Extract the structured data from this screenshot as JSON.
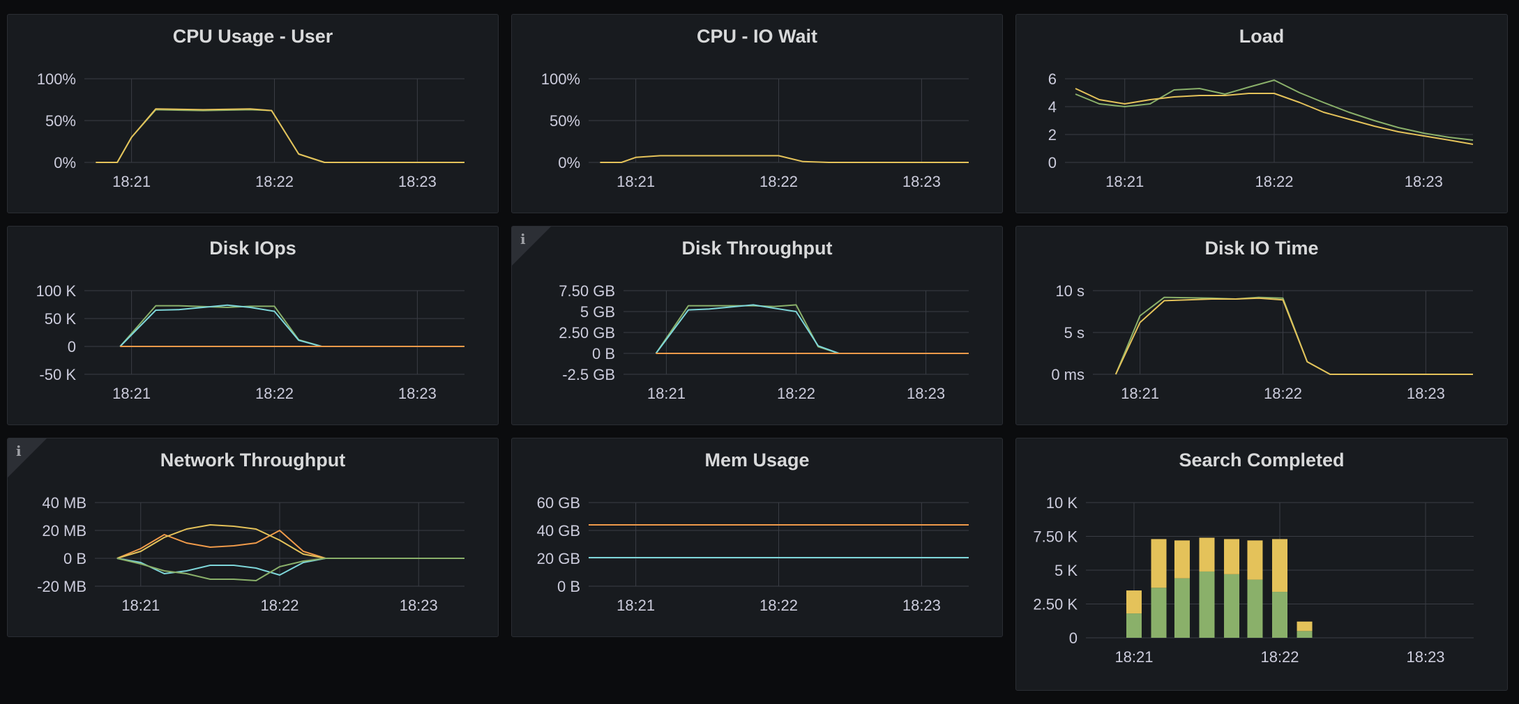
{
  "colors": {
    "green": "#8ab06a",
    "yellow": "#e4c25a",
    "orange": "#ef9a4a",
    "cyan": "#7ed6d9",
    "grid": "#3a3d44"
  },
  "info_icon": "info-icon",
  "x_ticks": [
    "18:21",
    "18:22",
    "18:23"
  ],
  "chart_data": [
    {
      "id": "cpu_user",
      "type": "line",
      "title": "CPU Usage - User",
      "ylim": [
        0,
        100
      ],
      "y_ticks": [
        {
          "v": 0,
          "label": "0%"
        },
        {
          "v": 50,
          "label": "50%"
        },
        {
          "v": 100,
          "label": "100%"
        }
      ],
      "series": [
        {
          "color": "green",
          "points": [
            [
              20.75,
              0
            ],
            [
              20.9,
              0
            ],
            [
              21.0,
              30
            ],
            [
              21.17,
              63
            ],
            [
              21.5,
              62
            ],
            [
              21.83,
              63
            ],
            [
              21.98,
              62
            ],
            [
              22.17,
              10
            ],
            [
              22.35,
              0
            ],
            [
              22.8,
              0
            ],
            [
              23.33,
              0
            ]
          ]
        },
        {
          "color": "yellow",
          "points": [
            [
              20.75,
              0
            ],
            [
              20.9,
              0
            ],
            [
              21.0,
              30
            ],
            [
              21.17,
              64
            ],
            [
              21.5,
              63
            ],
            [
              21.83,
              64
            ],
            [
              21.98,
              62
            ],
            [
              22.17,
              10
            ],
            [
              22.35,
              0
            ],
            [
              22.8,
              0
            ],
            [
              23.33,
              0
            ]
          ]
        }
      ]
    },
    {
      "id": "cpu_iowait",
      "type": "line",
      "title": "CPU - IO Wait",
      "ylim": [
        0,
        100
      ],
      "y_ticks": [
        {
          "v": 0,
          "label": "0%"
        },
        {
          "v": 50,
          "label": "50%"
        },
        {
          "v": 100,
          "label": "100%"
        }
      ],
      "series": [
        {
          "color": "yellow",
          "points": [
            [
              20.75,
              0
            ],
            [
              20.9,
              0
            ],
            [
              21.0,
              6
            ],
            [
              21.17,
              8
            ],
            [
              21.5,
              8
            ],
            [
              21.83,
              8
            ],
            [
              22.0,
              8
            ],
            [
              22.17,
              1
            ],
            [
              22.35,
              0
            ],
            [
              22.8,
              0
            ],
            [
              23.33,
              0
            ]
          ]
        }
      ]
    },
    {
      "id": "load",
      "type": "line",
      "title": "Load",
      "ylim": [
        0,
        6
      ],
      "y_ticks": [
        {
          "v": 0,
          "label": "0"
        },
        {
          "v": 2,
          "label": "2"
        },
        {
          "v": 4,
          "label": "4"
        },
        {
          "v": 6,
          "label": "6"
        }
      ],
      "series": [
        {
          "color": "green",
          "points": [
            [
              20.67,
              4.9
            ],
            [
              20.83,
              4.2
            ],
            [
              21.0,
              4.0
            ],
            [
              21.17,
              4.2
            ],
            [
              21.33,
              5.2
            ],
            [
              21.5,
              5.3
            ],
            [
              21.67,
              4.9
            ],
            [
              21.83,
              5.4
            ],
            [
              22.0,
              5.9
            ],
            [
              22.17,
              5.0
            ],
            [
              22.33,
              4.3
            ],
            [
              22.5,
              3.6
            ],
            [
              22.67,
              3.0
            ],
            [
              22.83,
              2.5
            ],
            [
              23.0,
              2.1
            ],
            [
              23.17,
              1.8
            ],
            [
              23.33,
              1.6
            ]
          ]
        },
        {
          "color": "yellow",
          "points": [
            [
              20.67,
              5.3
            ],
            [
              20.83,
              4.5
            ],
            [
              21.0,
              4.2
            ],
            [
              21.17,
              4.5
            ],
            [
              21.33,
              4.7
            ],
            [
              21.5,
              4.8
            ],
            [
              21.67,
              4.8
            ],
            [
              21.83,
              4.95
            ],
            [
              22.0,
              4.95
            ],
            [
              22.17,
              4.3
            ],
            [
              22.33,
              3.6
            ],
            [
              22.5,
              3.1
            ],
            [
              22.67,
              2.6
            ],
            [
              22.83,
              2.2
            ],
            [
              23.0,
              1.9
            ],
            [
              23.17,
              1.6
            ],
            [
              23.33,
              1.3
            ]
          ]
        }
      ]
    },
    {
      "id": "disk_iops",
      "type": "line",
      "title": "Disk IOps",
      "ylim": [
        -50000,
        100000
      ],
      "y_ticks": [
        {
          "v": -50000,
          "label": "-50 K"
        },
        {
          "v": 0,
          "label": "0"
        },
        {
          "v": 50000,
          "label": "50 K"
        },
        {
          "v": 100000,
          "label": "100 K"
        }
      ],
      "series": [
        {
          "color": "green",
          "points": [
            [
              20.92,
              0
            ],
            [
              21.17,
              73000
            ],
            [
              21.33,
              73000
            ],
            [
              21.67,
              70000
            ],
            [
              21.83,
              72000
            ],
            [
              22.0,
              72000
            ],
            [
              22.17,
              12000
            ],
            [
              22.33,
              0
            ],
            [
              22.67,
              0
            ],
            [
              23.33,
              0
            ]
          ]
        },
        {
          "color": "cyan",
          "points": [
            [
              20.92,
              0
            ],
            [
              21.17,
              65000
            ],
            [
              21.33,
              66000
            ],
            [
              21.67,
              74000
            ],
            [
              21.83,
              70000
            ],
            [
              22.0,
              63000
            ],
            [
              22.17,
              11000
            ],
            [
              22.33,
              0
            ],
            [
              22.67,
              0
            ],
            [
              23.33,
              0
            ]
          ]
        },
        {
          "color": "orange",
          "points": [
            [
              20.92,
              0
            ],
            [
              21.5,
              0
            ],
            [
              22.0,
              0
            ],
            [
              22.5,
              0
            ],
            [
              23.33,
              0
            ]
          ]
        }
      ]
    },
    {
      "id": "disk_throughput",
      "type": "line",
      "title": "Disk Throughput",
      "info": true,
      "ylim": [
        -2.5,
        7.5
      ],
      "y_ticks": [
        {
          "v": -2.5,
          "label": "-2.5 GB"
        },
        {
          "v": 0,
          "label": "0 B"
        },
        {
          "v": 2.5,
          "label": "2.50 GB"
        },
        {
          "v": 5,
          "label": "5 GB"
        },
        {
          "v": 7.5,
          "label": "7.50 GB"
        }
      ],
      "series": [
        {
          "color": "green",
          "points": [
            [
              20.92,
              0
            ],
            [
              21.17,
              5.7
            ],
            [
              21.33,
              5.7
            ],
            [
              21.67,
              5.7
            ],
            [
              21.83,
              5.6
            ],
            [
              22.0,
              5.8
            ],
            [
              22.17,
              0.8
            ],
            [
              22.33,
              0
            ],
            [
              22.67,
              0
            ],
            [
              23.33,
              0
            ]
          ]
        },
        {
          "color": "cyan",
          "points": [
            [
              20.92,
              0
            ],
            [
              21.17,
              5.2
            ],
            [
              21.33,
              5.3
            ],
            [
              21.67,
              5.8
            ],
            [
              21.83,
              5.4
            ],
            [
              22.0,
              5.0
            ],
            [
              22.17,
              0.9
            ],
            [
              22.33,
              0
            ],
            [
              22.67,
              0
            ],
            [
              23.33,
              0
            ]
          ]
        },
        {
          "color": "orange",
          "points": [
            [
              20.92,
              0
            ],
            [
              21.5,
              0
            ],
            [
              22.0,
              0
            ],
            [
              22.5,
              0
            ],
            [
              23.33,
              0
            ]
          ]
        }
      ]
    },
    {
      "id": "disk_io_time",
      "type": "line",
      "title": "Disk IO Time",
      "ylim": [
        0,
        10
      ],
      "y_ticks": [
        {
          "v": 0,
          "label": "0 ms"
        },
        {
          "v": 5,
          "label": "5 s"
        },
        {
          "v": 10,
          "label": "10 s"
        }
      ],
      "series": [
        {
          "color": "green",
          "points": [
            [
              20.83,
              0
            ],
            [
              21.0,
              7
            ],
            [
              21.17,
              9.2
            ],
            [
              21.5,
              9.1
            ],
            [
              21.67,
              9.0
            ],
            [
              21.83,
              9.2
            ],
            [
              22.0,
              9.1
            ],
            [
              22.17,
              1.5
            ],
            [
              22.33,
              0
            ],
            [
              22.67,
              0
            ],
            [
              23.33,
              0
            ]
          ]
        },
        {
          "color": "yellow",
          "points": [
            [
              20.83,
              0
            ],
            [
              21.0,
              6.2
            ],
            [
              21.17,
              8.8
            ],
            [
              21.5,
              9.0
            ],
            [
              21.67,
              9.0
            ],
            [
              21.83,
              9.1
            ],
            [
              22.0,
              8.9
            ],
            [
              22.17,
              1.5
            ],
            [
              22.33,
              0
            ],
            [
              22.67,
              0
            ],
            [
              23.33,
              0
            ]
          ]
        }
      ]
    },
    {
      "id": "network_throughput",
      "type": "line",
      "title": "Network Throughput",
      "info": true,
      "ylim": [
        -20,
        40
      ],
      "y_ticks": [
        {
          "v": -20,
          "label": "-20 MB"
        },
        {
          "v": 0,
          "label": "0 B"
        },
        {
          "v": 20,
          "label": "20 MB"
        },
        {
          "v": 40,
          "label": "40 MB"
        }
      ],
      "series": [
        {
          "color": "orange",
          "points": [
            [
              20.83,
              0
            ],
            [
              21.0,
              7
            ],
            [
              21.17,
              17
            ],
            [
              21.33,
              11
            ],
            [
              21.5,
              8
            ],
            [
              21.67,
              9
            ],
            [
              21.83,
              11
            ],
            [
              22.0,
              20
            ],
            [
              22.17,
              5
            ],
            [
              22.33,
              0
            ],
            [
              22.67,
              0
            ],
            [
              23.33,
              0
            ]
          ]
        },
        {
          "color": "yellow",
          "points": [
            [
              20.83,
              0
            ],
            [
              21.0,
              5
            ],
            [
              21.17,
              15
            ],
            [
              21.33,
              21
            ],
            [
              21.5,
              24
            ],
            [
              21.67,
              23
            ],
            [
              21.83,
              21
            ],
            [
              22.0,
              13
            ],
            [
              22.17,
              3
            ],
            [
              22.33,
              0
            ],
            [
              22.67,
              0
            ],
            [
              23.33,
              0
            ]
          ]
        },
        {
          "color": "cyan",
          "points": [
            [
              20.83,
              0
            ],
            [
              21.0,
              -3
            ],
            [
              21.17,
              -11
            ],
            [
              21.33,
              -9
            ],
            [
              21.5,
              -5
            ],
            [
              21.67,
              -5
            ],
            [
              21.83,
              -7
            ],
            [
              22.0,
              -12
            ],
            [
              22.17,
              -3
            ],
            [
              22.33,
              0
            ],
            [
              22.67,
              0
            ],
            [
              23.33,
              0
            ]
          ]
        },
        {
          "color": "green",
          "points": [
            [
              20.83,
              0
            ],
            [
              21.0,
              -4
            ],
            [
              21.17,
              -9
            ],
            [
              21.33,
              -11
            ],
            [
              21.5,
              -15
            ],
            [
              21.67,
              -15
            ],
            [
              21.83,
              -16
            ],
            [
              22.0,
              -6
            ],
            [
              22.17,
              -2
            ],
            [
              22.33,
              0
            ],
            [
              22.67,
              0
            ],
            [
              23.33,
              0
            ]
          ]
        }
      ]
    },
    {
      "id": "mem_usage",
      "type": "line",
      "title": "Mem Usage",
      "ylim": [
        0,
        60
      ],
      "y_ticks": [
        {
          "v": 0,
          "label": "0 B"
        },
        {
          "v": 20,
          "label": "20 GB"
        },
        {
          "v": 40,
          "label": "40 GB"
        },
        {
          "v": 60,
          "label": "60 GB"
        }
      ],
      "series": [
        {
          "color": "orange",
          "points": [
            [
              20.67,
              44
            ],
            [
              23.33,
              44
            ]
          ]
        },
        {
          "color": "cyan",
          "points": [
            [
              20.67,
              20.5
            ],
            [
              23.33,
              20.5
            ]
          ]
        }
      ]
    },
    {
      "id": "search_completed",
      "type": "bar",
      "title": "Search Completed",
      "ylim": [
        0,
        10000
      ],
      "y_ticks": [
        {
          "v": 0,
          "label": "0"
        },
        {
          "v": 2500,
          "label": "2.50 K"
        },
        {
          "v": 5000,
          "label": "5 K"
        },
        {
          "v": 7500,
          "label": "7.50 K"
        },
        {
          "v": 10000,
          "label": "10 K"
        }
      ],
      "series": [
        {
          "color": "green",
          "stack": [
            1800,
            3700,
            4400,
            4900,
            4700,
            4300,
            3400,
            500
          ]
        },
        {
          "color": "yellow",
          "stack": [
            1700,
            3600,
            2800,
            2500,
            2600,
            2900,
            3900,
            700
          ]
        }
      ],
      "bar_x": [
        21.0,
        21.17,
        21.33,
        21.5,
        21.67,
        21.83,
        22.0,
        22.17
      ]
    }
  ]
}
